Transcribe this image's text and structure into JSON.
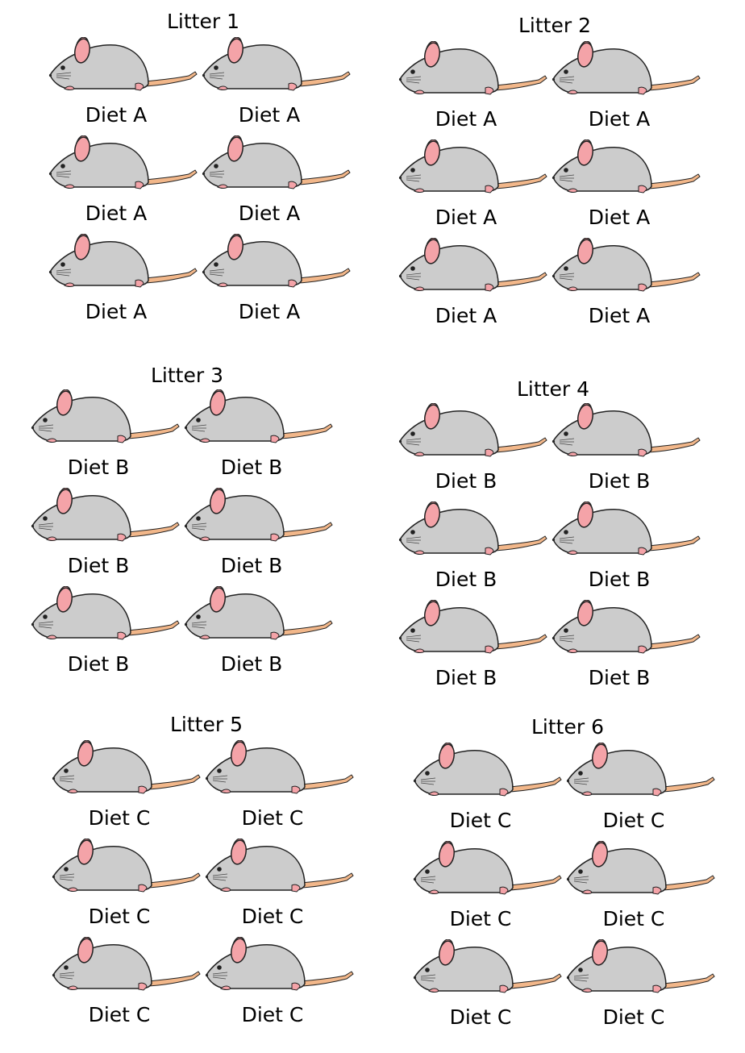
{
  "litters": [
    {
      "title": "Litter 1",
      "diets": [
        "Diet A",
        "Diet A",
        "Diet A",
        "Diet A",
        "Diet A",
        "Diet A"
      ]
    },
    {
      "title": "Litter 2",
      "diets": [
        "Diet A",
        "Diet A",
        "Diet A",
        "Diet A",
        "Diet A",
        "Diet A"
      ]
    },
    {
      "title": "Litter 3",
      "diets": [
        "Diet B",
        "Diet B",
        "Diet B",
        "Diet B",
        "Diet B",
        "Diet B"
      ]
    },
    {
      "title": "Litter 4",
      "diets": [
        "Diet B",
        "Diet B",
        "Diet B",
        "Diet B",
        "Diet B",
        "Diet B"
      ]
    },
    {
      "title": "Litter 5",
      "diets": [
        "Diet C",
        "Diet C",
        "Diet C",
        "Diet C",
        "Diet C",
        "Diet C"
      ]
    },
    {
      "title": "Litter 6",
      "diets": [
        "Diet C",
        "Diet C",
        "Diet C",
        "Diet C",
        "Diet C",
        "Diet C"
      ]
    }
  ],
  "icon": "mouse-icon",
  "colors": {
    "body": "#cccccc",
    "ear": "#f4a3a8",
    "tail": "#f2b78a",
    "feet": "#f4a3a8",
    "outline": "#222222"
  }
}
